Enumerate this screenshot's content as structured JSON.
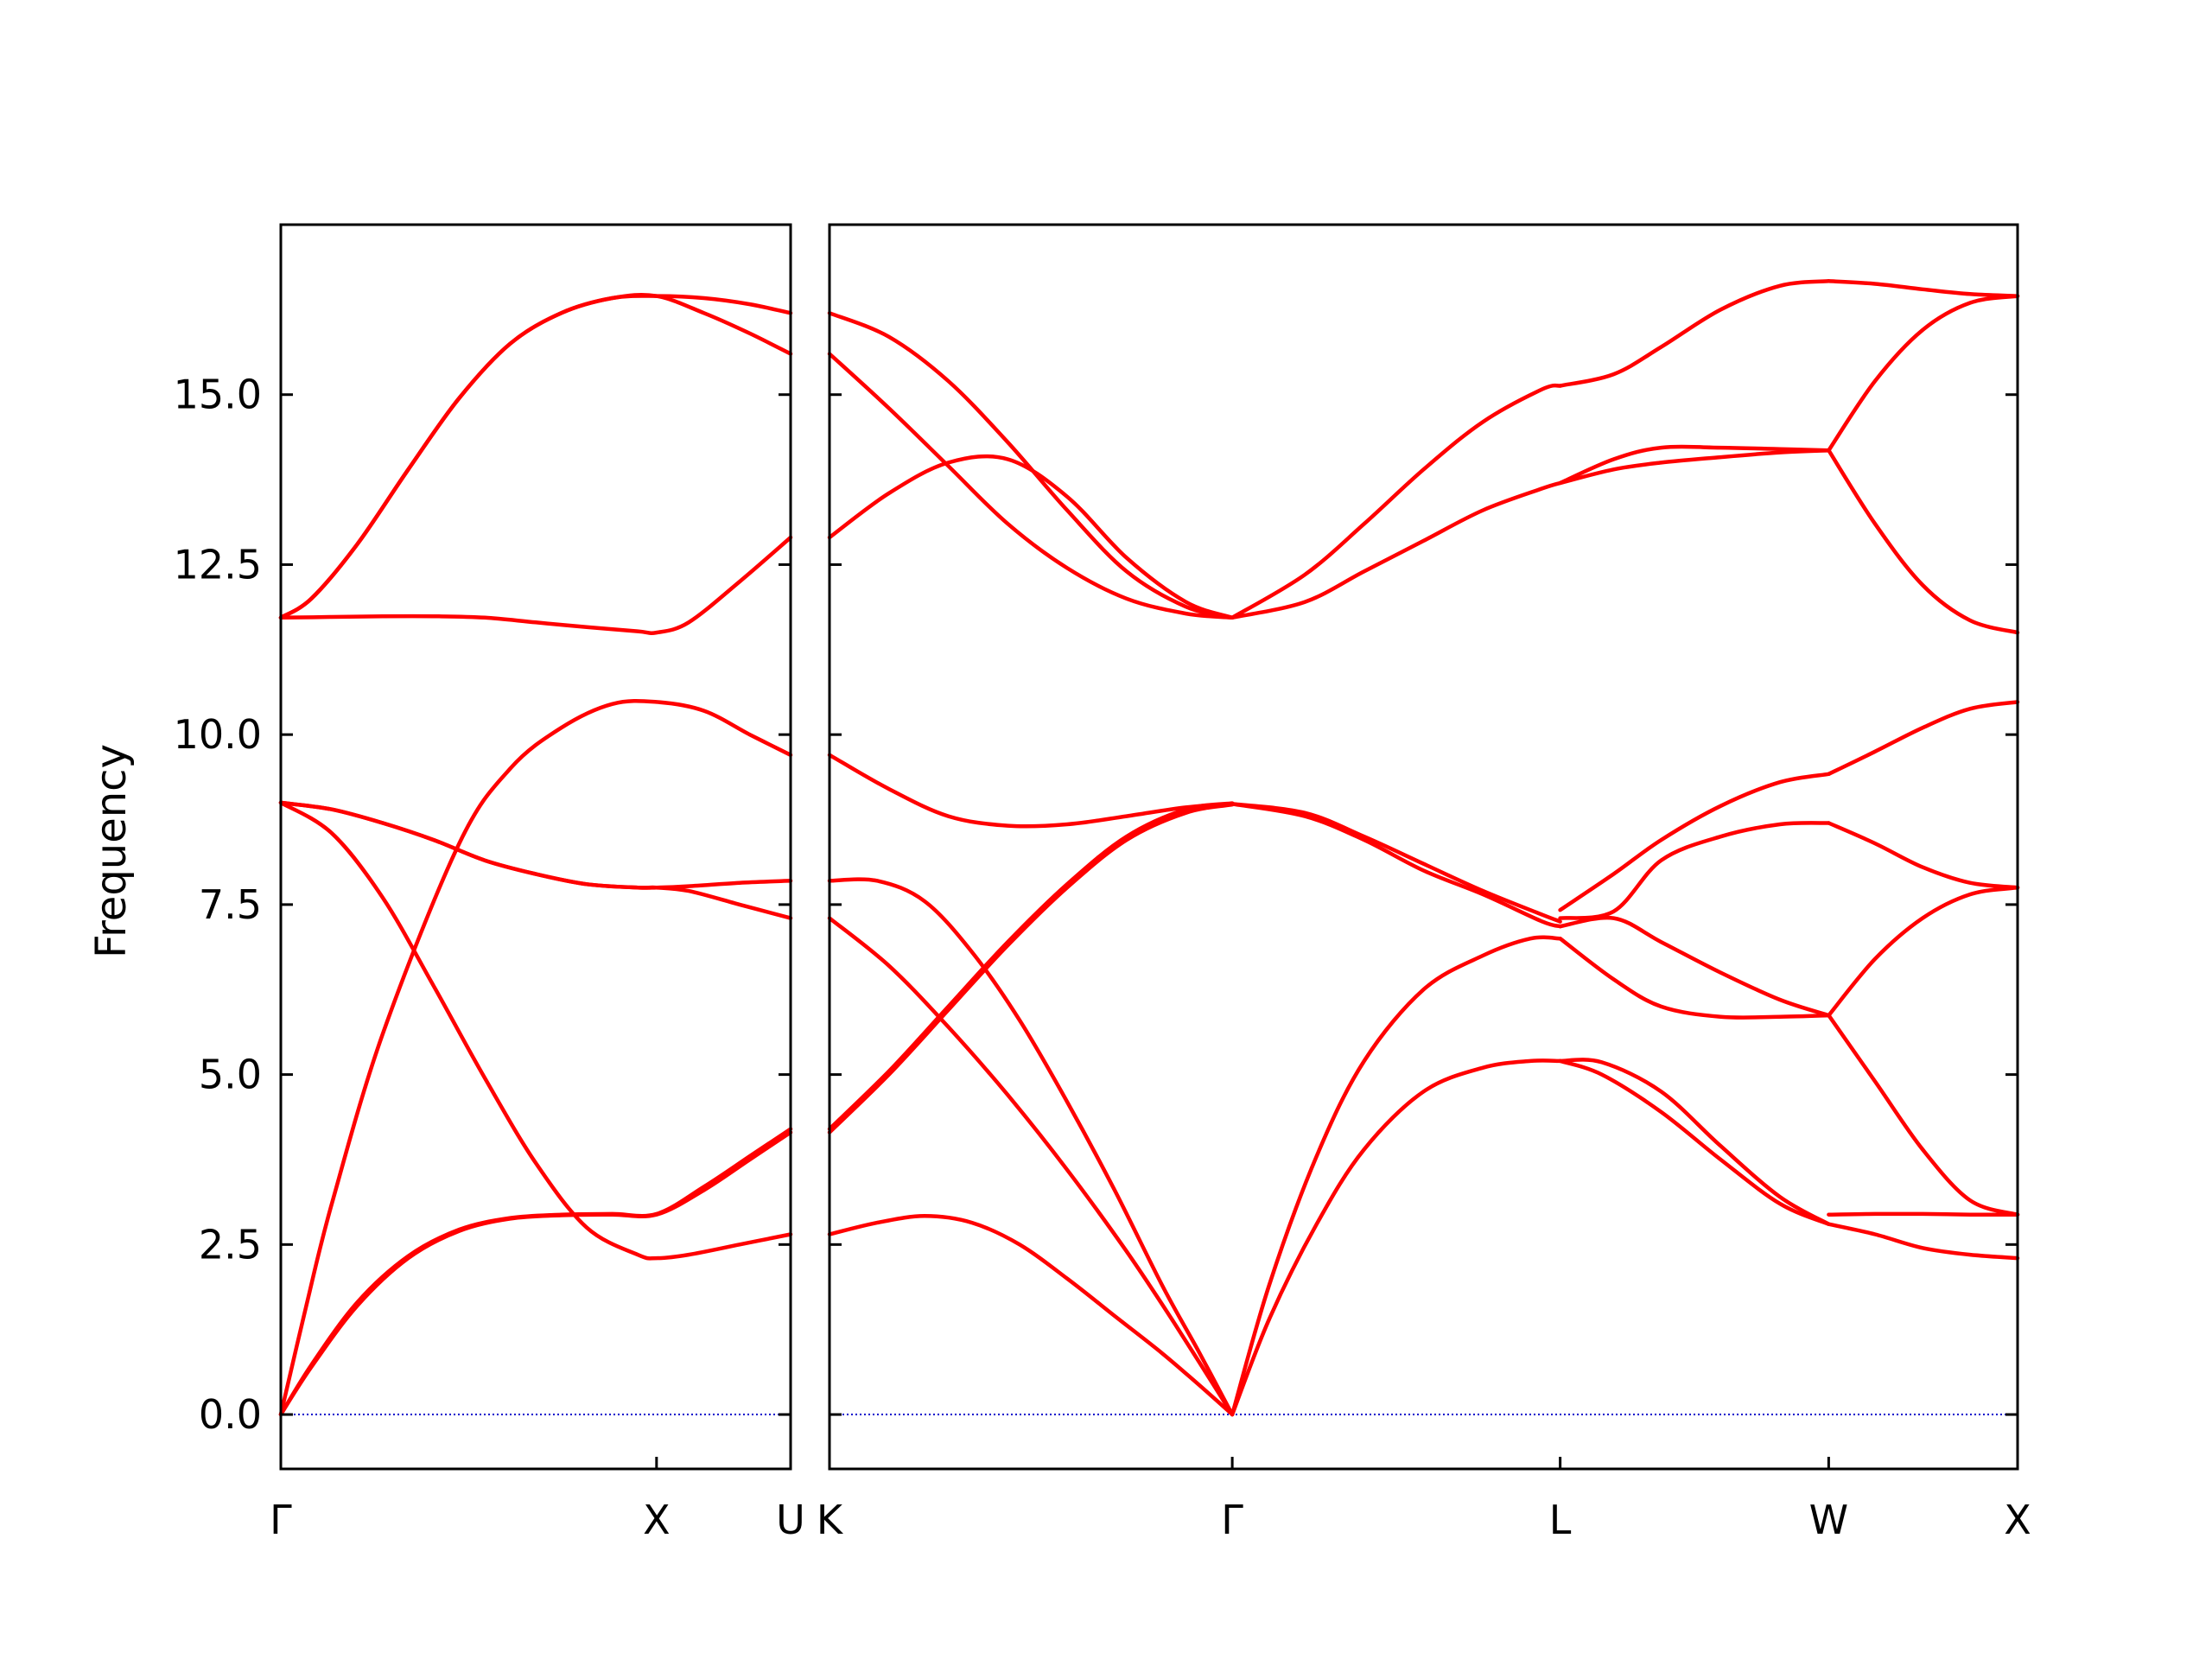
{
  "chart_data": {
    "type": "line",
    "title": "",
    "ylabel": "Frequency",
    "xlabel": "",
    "ylim": [
      -0.8,
      17.5
    ],
    "y_ticks": [
      0.0,
      2.5,
      5.0,
      7.5,
      10.0,
      12.5,
      15.0
    ],
    "y_tick_labels": [
      "0.0",
      "2.5",
      "5.0",
      "7.5",
      "10.0",
      "12.5",
      "15.0"
    ],
    "grid": false,
    "legend": "none",
    "colors": {
      "bands": "#ff0000",
      "zero_line": "#0000cc",
      "axes": "#000000"
    },
    "panels": [
      {
        "path": [
          "Γ",
          "X",
          "U"
        ],
        "x_tick_labels": [
          "Γ",
          "X",
          "U"
        ],
        "x_ticks": [
          0.0,
          0.737,
          1.0
        ],
        "xlim": [
          0.0,
          1.0
        ],
        "bands": [
          {
            "x": [
              0.0,
              0.06,
              0.15,
              0.25,
              0.35,
              0.45,
              0.55,
              0.65,
              0.737,
              0.83,
              0.92,
              1.0
            ],
            "y": [
              0.0,
              0.7,
              1.6,
              2.3,
              2.7,
              2.88,
              2.93,
              2.94,
              2.94,
              3.3,
              3.75,
              4.15
            ]
          },
          {
            "x": [
              0.0,
              0.06,
              0.15,
              0.25,
              0.35,
              0.45,
              0.55,
              0.65,
              0.737,
              0.83,
              0.92,
              1.0
            ],
            "y": [
              0.0,
              0.73,
              1.65,
              2.33,
              2.72,
              2.89,
              2.94,
              2.95,
              2.95,
              3.35,
              3.8,
              4.2
            ]
          },
          {
            "x": [
              0.0,
              0.05,
              0.1,
              0.2,
              0.35,
              0.45,
              0.55,
              0.65,
              0.737,
              0.83,
              0.92,
              1.0
            ],
            "y": [
              0.0,
              1.6,
              3.1,
              5.6,
              8.4,
              9.5,
              10.1,
              10.45,
              10.48,
              10.35,
              10.0,
              9.7
            ]
          },
          {
            "x": [
              0.0,
              0.1,
              0.2,
              0.3,
              0.4,
              0.5,
              0.6,
              0.7,
              0.737,
              0.8,
              0.9,
              1.0
            ],
            "y": [
              9.0,
              8.55,
              7.6,
              6.3,
              4.95,
              3.7,
              2.75,
              2.35,
              2.3,
              2.35,
              2.5,
              2.65
            ]
          },
          {
            "x": [
              0.0,
              0.1,
              0.2,
              0.3,
              0.4,
              0.5,
              0.6,
              0.7,
              0.737,
              0.8,
              0.9,
              1.0
            ],
            "y": [
              9.0,
              8.9,
              8.7,
              8.45,
              8.15,
              7.95,
              7.8,
              7.75,
              7.75,
              7.77,
              7.82,
              7.85
            ]
          },
          {
            "x": [
              0.0,
              0.1,
              0.2,
              0.3,
              0.4,
              0.5,
              0.6,
              0.7,
              0.737,
              0.8,
              0.9,
              1.0
            ],
            "y": [
              9.0,
              8.9,
              8.7,
              8.45,
              8.15,
              7.95,
              7.8,
              7.75,
              7.75,
              7.7,
              7.5,
              7.3
            ]
          },
          {
            "x": [
              0.0,
              0.1,
              0.2,
              0.3,
              0.4,
              0.5,
              0.6,
              0.7,
              0.737,
              0.8,
              0.9,
              1.0
            ],
            "y": [
              11.72,
              11.73,
              11.74,
              11.74,
              11.72,
              11.65,
              11.58,
              11.52,
              11.5,
              11.65,
              12.25,
              12.9
            ]
          },
          {
            "x": [
              0.0,
              0.06,
              0.15,
              0.25,
              0.35,
              0.45,
              0.55,
              0.65,
              0.737,
              0.83,
              0.92,
              1.0
            ],
            "y": [
              11.72,
              12.0,
              12.8,
              13.9,
              14.95,
              15.75,
              16.2,
              16.42,
              16.45,
              16.2,
              15.9,
              15.6
            ]
          },
          {
            "x": [
              0.0,
              0.06,
              0.15,
              0.25,
              0.35,
              0.45,
              0.55,
              0.65,
              0.737,
              0.83,
              0.92,
              1.0
            ],
            "y": [
              11.72,
              12.0,
              12.8,
              13.9,
              14.95,
              15.75,
              16.2,
              16.42,
              16.45,
              16.42,
              16.33,
              16.2
            ]
          }
        ]
      },
      {
        "path": [
          "K",
          "Γ",
          "L",
          "W",
          "X"
        ],
        "x_tick_labels": [
          "K",
          "Γ",
          "L",
          "W",
          "X"
        ],
        "x_ticks": [
          0.0,
          0.339,
          0.615,
          0.841,
          1.0
        ],
        "xlim": [
          0.0,
          1.0
        ],
        "bands": [
          {
            "x": [
              0.0,
              0.04,
              0.08,
              0.12,
              0.16,
              0.2,
              0.24,
              0.28,
              0.31,
              0.339
            ],
            "y": [
              2.65,
              2.82,
              2.92,
              2.82,
              2.5,
              2.0,
              1.45,
              0.9,
              0.45,
              0.0
            ]
          },
          {
            "x": [
              0.0,
              0.05,
              0.1,
              0.15,
              0.2,
              0.25,
              0.29,
              0.339
            ],
            "y": [
              7.3,
              6.6,
              5.7,
              4.7,
              3.6,
              2.4,
              1.35,
              0.0
            ]
          },
          {
            "x": [
              0.0,
              0.04,
              0.08,
              0.12,
              0.16,
              0.2,
              0.24,
              0.28,
              0.31,
              0.339
            ],
            "y": [
              7.85,
              7.85,
              7.55,
              6.8,
              5.8,
              4.6,
              3.3,
              1.9,
              0.95,
              0.0
            ]
          },
          {
            "x": [
              0.0,
              0.05,
              0.1,
              0.15,
              0.2,
              0.25,
              0.3,
              0.339
            ],
            "y": [
              4.15,
              5.0,
              5.95,
              6.9,
              7.75,
              8.45,
              8.85,
              8.97
            ]
          },
          {
            "x": [
              0.0,
              0.05,
              0.1,
              0.15,
              0.2,
              0.25,
              0.3,
              0.339
            ],
            "y": [
              4.2,
              5.05,
              6.0,
              6.95,
              7.8,
              8.5,
              8.9,
              8.99
            ]
          },
          {
            "x": [
              0.0,
              0.05,
              0.1,
              0.15,
              0.2,
              0.25,
              0.3,
              0.339
            ],
            "y": [
              9.7,
              9.2,
              8.8,
              8.66,
              8.68,
              8.8,
              8.93,
              8.98
            ]
          },
          {
            "x": [
              0.0,
              0.05,
              0.1,
              0.15,
              0.2,
              0.25,
              0.3,
              0.339
            ],
            "y": [
              12.9,
              13.55,
              14.0,
              14.05,
              13.5,
              12.6,
              11.95,
              11.72
            ]
          },
          {
            "x": [
              0.0,
              0.05,
              0.1,
              0.15,
              0.2,
              0.25,
              0.3,
              0.339
            ],
            "y": [
              15.6,
              14.8,
              13.95,
              13.1,
              12.45,
              12.0,
              11.78,
              11.72
            ]
          },
          {
            "x": [
              0.0,
              0.05,
              0.1,
              0.15,
              0.2,
              0.25,
              0.3,
              0.339
            ],
            "y": [
              16.2,
              15.85,
              15.2,
              14.3,
              13.3,
              12.4,
              11.88,
              11.72
            ]
          },
          {
            "x": [
              0.339,
              0.37,
              0.41,
              0.45,
              0.5,
              0.55,
              0.59,
              0.615
            ],
            "y": [
              0.0,
              1.4,
              2.8,
              3.9,
              4.75,
              5.1,
              5.2,
              5.2
            ]
          },
          {
            "x": [
              0.339,
              0.37,
              0.41,
              0.45,
              0.5,
              0.55,
              0.59,
              0.615
            ],
            "y": [
              0.0,
              1.9,
              3.8,
              5.2,
              6.25,
              6.75,
              7.0,
              7.0
            ]
          },
          {
            "x": [
              0.339,
              0.4,
              0.45,
              0.5,
              0.55,
              0.6,
              0.615
            ],
            "y": [
              8.98,
              8.85,
              8.5,
              8.1,
              7.7,
              7.35,
              7.25
            ]
          },
          {
            "x": [
              0.339,
              0.4,
              0.45,
              0.5,
              0.55,
              0.6,
              0.615
            ],
            "y": [
              8.98,
              8.8,
              8.45,
              8.0,
              7.65,
              7.25,
              7.18
            ]
          },
          {
            "x": [
              0.339,
              0.4,
              0.45,
              0.5,
              0.55,
              0.6,
              0.615
            ],
            "y": [
              11.72,
              11.95,
              12.4,
              12.85,
              13.3,
              13.62,
              13.7
            ]
          },
          {
            "x": [
              0.339,
              0.4,
              0.45,
              0.5,
              0.55,
              0.6,
              0.615
            ],
            "y": [
              11.72,
              12.35,
              13.1,
              13.9,
              14.6,
              15.08,
              15.13
            ]
          },
          {
            "x": [
              0.615,
              0.65,
              0.7,
              0.75,
              0.8,
              0.841
            ],
            "y": [
              5.2,
              5.18,
              4.75,
              3.95,
              3.2,
              2.8
            ]
          },
          {
            "x": [
              0.615,
              0.65,
              0.7,
              0.75,
              0.8,
              0.841
            ],
            "y": [
              5.2,
              5.0,
              4.45,
              3.75,
              3.1,
              2.8
            ]
          },
          {
            "x": [
              0.615,
              0.66,
              0.7,
              0.75,
              0.8,
              0.841
            ],
            "y": [
              7.0,
              6.4,
              6.0,
              5.85,
              5.85,
              5.87
            ]
          },
          {
            "x": [
              0.615,
              0.66,
              0.7,
              0.75,
              0.8,
              0.841
            ],
            "y": [
              7.18,
              7.3,
              6.95,
              6.5,
              6.1,
              5.87
            ]
          },
          {
            "x": [
              0.615,
              0.66,
              0.7,
              0.75,
              0.8,
              0.841
            ],
            "y": [
              7.3,
              7.4,
              8.15,
              8.5,
              8.68,
              8.7
            ]
          },
          {
            "x": [
              0.615,
              0.66,
              0.7,
              0.75,
              0.8,
              0.841
            ],
            "y": [
              7.42,
              7.95,
              8.45,
              8.95,
              9.3,
              9.42
            ]
          },
          {
            "x": [
              0.615,
              0.66,
              0.7,
              0.75,
              0.8,
              0.841
            ],
            "y": [
              13.7,
              13.9,
              14.0,
              14.08,
              14.15,
              14.18
            ]
          },
          {
            "x": [
              0.615,
              0.66,
              0.7,
              0.75,
              0.8,
              0.841
            ],
            "y": [
              13.7,
              14.05,
              14.22,
              14.22,
              14.2,
              14.18
            ]
          },
          {
            "x": [
              0.615,
              0.66,
              0.7,
              0.75,
              0.8,
              0.841
            ],
            "y": [
              15.13,
              15.3,
              15.7,
              16.25,
              16.6,
              16.67
            ]
          },
          {
            "x": [
              0.841,
              0.88,
              0.92,
              0.96,
              1.0
            ],
            "y": [
              2.8,
              2.65,
              2.45,
              2.35,
              2.3
            ]
          },
          {
            "x": [
              0.841,
              0.88,
              0.92,
              0.96,
              1.0
            ],
            "y": [
              2.94,
              2.95,
              2.95,
              2.94,
              2.94
            ]
          },
          {
            "x": [
              0.841,
              0.88,
              0.92,
              0.96,
              1.0
            ],
            "y": [
              5.87,
              4.9,
              3.9,
              3.15,
              2.94
            ]
          },
          {
            "x": [
              0.841,
              0.88,
              0.92,
              0.96,
              1.0
            ],
            "y": [
              5.87,
              6.7,
              7.3,
              7.65,
              7.75
            ]
          },
          {
            "x": [
              0.841,
              0.88,
              0.92,
              0.96,
              1.0
            ],
            "y": [
              8.7,
              8.4,
              8.05,
              7.82,
              7.75
            ]
          },
          {
            "x": [
              0.841,
              0.88,
              0.92,
              0.96,
              1.0
            ],
            "y": [
              9.42,
              9.75,
              10.1,
              10.38,
              10.48
            ]
          },
          {
            "x": [
              0.841,
              0.88,
              0.92,
              0.96,
              1.0
            ],
            "y": [
              14.18,
              13.1,
              12.2,
              11.68,
              11.5
            ]
          },
          {
            "x": [
              0.841,
              0.88,
              0.92,
              0.96,
              1.0
            ],
            "y": [
              14.18,
              15.2,
              15.95,
              16.35,
              16.45
            ]
          },
          {
            "x": [
              0.841,
              0.88,
              0.92,
              0.96,
              1.0
            ],
            "y": [
              16.67,
              16.63,
              16.55,
              16.48,
              16.45
            ]
          }
        ]
      }
    ]
  }
}
